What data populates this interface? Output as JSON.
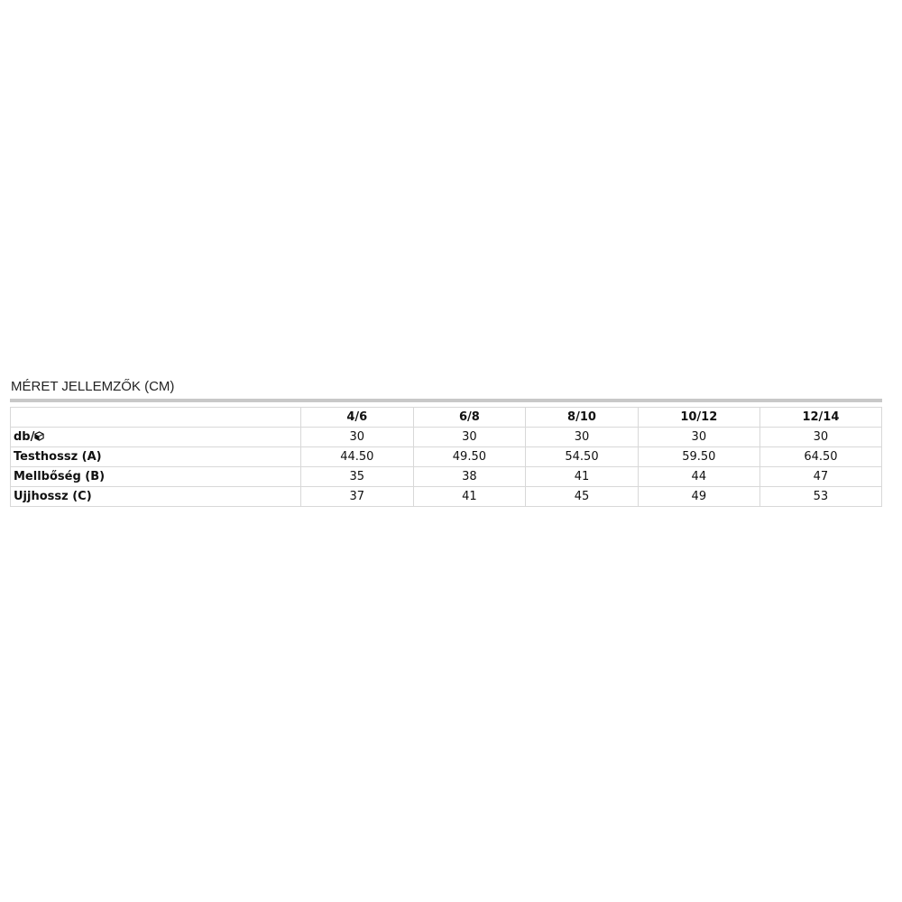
{
  "title": "MÉRET JELLEMZŐK (CM)",
  "table": {
    "headers": [
      "",
      "4/6",
      "6/8",
      "8/10",
      "10/12",
      "12/14"
    ],
    "rows": [
      {
        "label": "db/",
        "icon": "box-icon",
        "values": [
          "30",
          "30",
          "30",
          "30",
          "30"
        ]
      },
      {
        "label": "Testhossz (A)",
        "values": [
          "44.50",
          "49.50",
          "54.50",
          "59.50",
          "64.50"
        ]
      },
      {
        "label": "Mellbőség (B)",
        "values": [
          "35",
          "38",
          "41",
          "44",
          "47"
        ]
      },
      {
        "label": "Ujjhossz (C)",
        "values": [
          "37",
          "41",
          "45",
          "49",
          "53"
        ]
      }
    ]
  }
}
